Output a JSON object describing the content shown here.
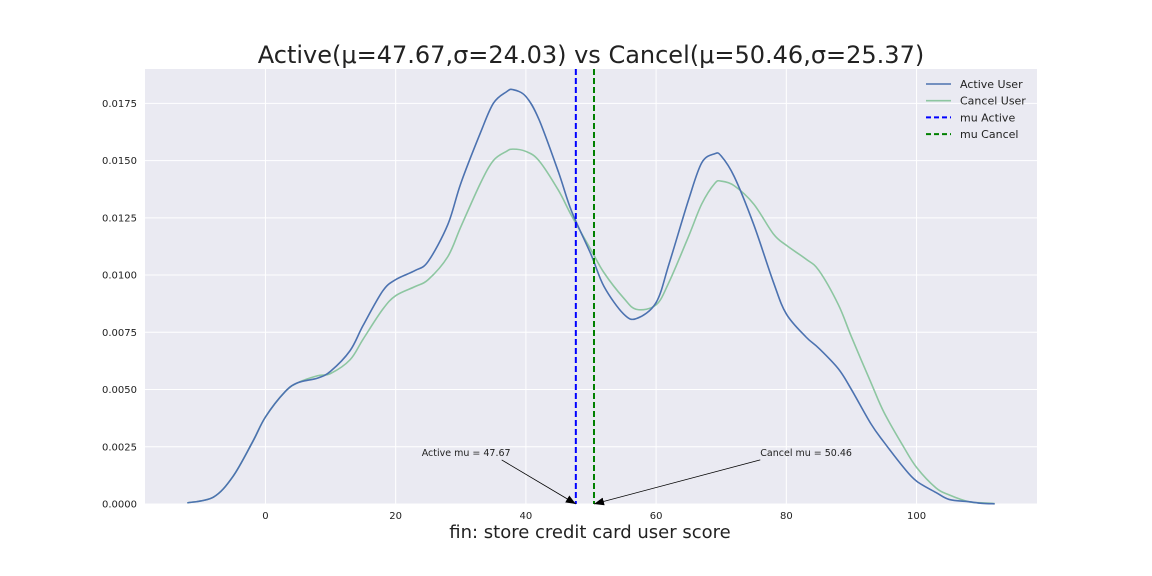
{
  "chart_data": {
    "type": "line",
    "title": "Active(μ=47.67,σ=24.03) vs Cancel(μ=50.46,σ=25.37)",
    "xlabel": "fin: store credit card user score",
    "ylabel": "",
    "xlim": [
      -18.5,
      118.5
    ],
    "ylim": [
      0,
      0.019
    ],
    "x_ticks": [
      0,
      20,
      40,
      60,
      80,
      100
    ],
    "x_tick_labels": [
      "0",
      "20",
      "40",
      "60",
      "80",
      "100"
    ],
    "y_ticks": [
      0,
      0.0025,
      0.005,
      0.0075,
      0.01,
      0.0125,
      0.015,
      0.0175
    ],
    "y_tick_labels": [
      "0.0000",
      "0.0025",
      "0.0050",
      "0.0075",
      "0.0100",
      "0.0125",
      "0.0150",
      "0.0175"
    ],
    "grid": true,
    "legend_position": "top-right",
    "colors": {
      "background": "#EAEAF2",
      "grid": "#FFFFFF"
    },
    "series": [
      {
        "name": "Active User",
        "color": "#4C72B0",
        "x": [
          -12,
          -8,
          -5,
          -2,
          0,
          3,
          5,
          8,
          10,
          13,
          15,
          18,
          20,
          23,
          25,
          28,
          30,
          33,
          35,
          37,
          38,
          40,
          42,
          45,
          47,
          50,
          52,
          55,
          57,
          60,
          62,
          65,
          67,
          69,
          70,
          72,
          75,
          78,
          80,
          83,
          85,
          88,
          90,
          93,
          95,
          98,
          100,
          103,
          105,
          108,
          110,
          112
        ],
        "y": [
          5e-05,
          0.0003,
          0.0012,
          0.0027,
          0.0038,
          0.0049,
          0.0053,
          0.0055,
          0.0058,
          0.0067,
          0.0078,
          0.0093,
          0.0098,
          0.0102,
          0.0106,
          0.0122,
          0.014,
          0.0162,
          0.0175,
          0.018,
          0.0181,
          0.0178,
          0.0168,
          0.0145,
          0.0128,
          0.0109,
          0.0095,
          0.0083,
          0.0081,
          0.0088,
          0.0105,
          0.0133,
          0.0149,
          0.0153,
          0.0152,
          0.0143,
          0.0122,
          0.0097,
          0.0083,
          0.0073,
          0.0068,
          0.0059,
          0.005,
          0.0035,
          0.0027,
          0.0016,
          0.001,
          0.0005,
          0.0002,
          0.0001,
          3e-05,
          1e-05
        ]
      },
      {
        "name": "Cancel User",
        "color": "#8DC6A1",
        "x": [
          -12,
          -8,
          -5,
          -2,
          0,
          3,
          5,
          8,
          10,
          13,
          15,
          18,
          20,
          23,
          25,
          28,
          30,
          33,
          35,
          37,
          38,
          40,
          42,
          45,
          47,
          50,
          52,
          55,
          57,
          60,
          62,
          65,
          67,
          69,
          70,
          72,
          75,
          78,
          80,
          83,
          85,
          88,
          90,
          93,
          95,
          98,
          100,
          103,
          105,
          108,
          110,
          112
        ],
        "y": [
          5e-05,
          0.0003,
          0.0012,
          0.0027,
          0.0038,
          0.0049,
          0.0053,
          0.0056,
          0.0057,
          0.0063,
          0.0072,
          0.0085,
          0.0091,
          0.0095,
          0.0098,
          0.0108,
          0.0121,
          0.014,
          0.015,
          0.0154,
          0.0155,
          0.0154,
          0.015,
          0.0137,
          0.0126,
          0.0111,
          0.0101,
          0.009,
          0.0085,
          0.0087,
          0.0097,
          0.0117,
          0.0131,
          0.014,
          0.0141,
          0.0139,
          0.0131,
          0.0118,
          0.0113,
          0.0107,
          0.0102,
          0.0087,
          0.0073,
          0.0053,
          0.004,
          0.0025,
          0.0016,
          0.0007,
          0.0004,
          0.0001,
          5e-05,
          2e-05
        ]
      }
    ],
    "vlines": [
      {
        "name": "mu Active",
        "x": 47.67,
        "color": "#0000FF",
        "dash": "dashed"
      },
      {
        "name": "mu Cancel",
        "x": 50.46,
        "color": "#008000",
        "dash": "dashed"
      }
    ],
    "annotations": [
      {
        "text": "Active mu = 47.67",
        "x": 47.67,
        "y": 0,
        "text_x": 24,
        "text_y": 0.0021
      },
      {
        "text": "Cancel mu = 50.46",
        "x": 50.46,
        "y": 0,
        "text_x": 76,
        "text_y": 0.0021
      }
    ]
  }
}
